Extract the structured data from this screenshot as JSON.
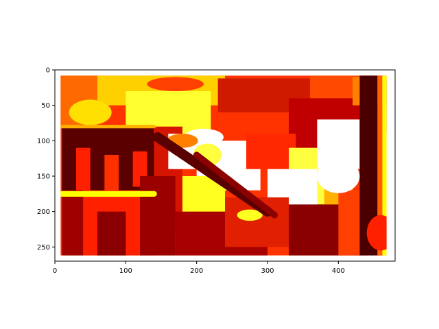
{
  "chart_data": {
    "type": "heatmap",
    "image_width": 480,
    "image_height": 270,
    "xlim": [
      0,
      480
    ],
    "ylim": [
      270,
      0
    ],
    "data_extent": {
      "x": [
        8,
        468
      ],
      "y": [
        8,
        262
      ]
    },
    "x_ticks": [
      0,
      100,
      200,
      300,
      400
    ],
    "y_ticks": [
      0,
      50,
      100,
      150,
      200,
      250
    ],
    "colormap": "hot",
    "colormap_stops": [
      "#000000",
      "#8b0000",
      "#ff0000",
      "#ff8c00",
      "#ffff00",
      "#ffffff"
    ],
    "grid": false,
    "legend": "none",
    "colorbar": false,
    "regions": [
      {
        "x": [
          8,
          468
        ],
        "y": [
          8,
          262
        ],
        "color": "#ff3300"
      },
      {
        "x": [
          8,
          60
        ],
        "y": [
          8,
          80
        ],
        "color": "#ff6a00"
      },
      {
        "x": [
          60,
          240
        ],
        "y": [
          8,
          50
        ],
        "color": "#ffd000"
      },
      {
        "x": [
          100,
          220
        ],
        "y": [
          30,
          90
        ],
        "color": "#ffff30"
      },
      {
        "x": [
          230,
          360
        ],
        "y": [
          12,
          60
        ],
        "color": "#d01a00"
      },
      {
        "x": [
          360,
          470
        ],
        "y": [
          8,
          90
        ],
        "color": "#ff4a00"
      },
      {
        "x": [
          330,
          430
        ],
        "y": [
          40,
          110
        ],
        "color": "#c00000"
      },
      {
        "x": [
          420,
          530
        ],
        "y": [
          10,
          50
        ],
        "color": "#ff8000"
      },
      {
        "x": [
          10,
          140
        ],
        "y": [
          80,
          170
        ],
        "color": "#5a0000"
      },
      {
        "x": [
          30,
          50
        ],
        "y": [
          110,
          170
        ],
        "color": "#ff2000"
      },
      {
        "x": [
          70,
          90
        ],
        "y": [
          120,
          170
        ],
        "color": "#ff3000"
      },
      {
        "x": [
          110,
          130
        ],
        "y": [
          115,
          165
        ],
        "color": "#ff2000"
      },
      {
        "x": [
          140,
          180
        ],
        "y": [
          80,
          220
        ],
        "color": "#d61500"
      },
      {
        "x": [
          160,
          200
        ],
        "y": [
          90,
          140
        ],
        "color": "#ffffff"
      },
      {
        "x": [
          200,
          290
        ],
        "y": [
          100,
          170
        ],
        "color": "#ffffff"
      },
      {
        "x": [
          180,
          240
        ],
        "y": [
          150,
          210
        ],
        "color": "#ffff20"
      },
      {
        "x": [
          270,
          340
        ],
        "y": [
          90,
          140
        ],
        "color": "#ff2800"
      },
      {
        "x": [
          330,
          420
        ],
        "y": [
          110,
          190
        ],
        "color": "#ffff40"
      },
      {
        "x": [
          370,
          430
        ],
        "y": [
          70,
          140
        ],
        "color": "#ffffff"
      },
      {
        "x": [
          300,
          370
        ],
        "y": [
          140,
          200
        ],
        "color": "#ffffff"
      },
      {
        "x": [
          380,
          420
        ],
        "y": [
          150,
          220
        ],
        "color": "#ffb000"
      },
      {
        "x": [
          10,
          40
        ],
        "y": [
          170,
          262
        ],
        "color": "#a00000"
      },
      {
        "x": [
          40,
          140
        ],
        "y": [
          180,
          262
        ],
        "color": "#ff2000"
      },
      {
        "x": [
          60,
          100
        ],
        "y": [
          200,
          262
        ],
        "color": "#8a0000"
      },
      {
        "x": [
          120,
          170
        ],
        "y": [
          150,
          262
        ],
        "color": "#9a0000"
      },
      {
        "x": [
          170,
          300
        ],
        "y": [
          200,
          262
        ],
        "color": "#a80000"
      },
      {
        "x": [
          240,
          330
        ],
        "y": [
          180,
          250
        ],
        "color": "#e02000"
      },
      {
        "x": [
          330,
          430
        ],
        "y": [
          190,
          262
        ],
        "color": "#8a0000"
      },
      {
        "x": [
          400,
          440
        ],
        "y": [
          170,
          262
        ],
        "color": "#ff4000"
      },
      {
        "x": [
          430,
          460
        ],
        "y": [
          8,
          262
        ],
        "color": "#4a0000"
      },
      {
        "x": [
          455,
          462
        ],
        "y": [
          8,
          262
        ],
        "color": "#ff6000"
      },
      {
        "x": [
          462,
          468
        ],
        "y": [
          8,
          262
        ],
        "color": "#ffff00"
      }
    ],
    "blobs": [
      {
        "x": 210,
        "y": 95,
        "rx": 28,
        "ry": 12,
        "color": "#ffffff"
      },
      {
        "x": 215,
        "y": 120,
        "rx": 20,
        "ry": 16,
        "color": "#ffff40"
      },
      {
        "x": 180,
        "y": 100,
        "rx": 22,
        "ry": 10,
        "color": "#ff8000"
      },
      {
        "x": 50,
        "y": 60,
        "rx": 30,
        "ry": 18,
        "color": "#ffe000"
      },
      {
        "x": 170,
        "y": 20,
        "rx": 40,
        "ry": 10,
        "color": "#ff4000"
      },
      {
        "x": 400,
        "y": 150,
        "rx": 30,
        "ry": 24,
        "color": "#ffffff"
      },
      {
        "x": 275,
        "y": 205,
        "rx": 18,
        "ry": 8,
        "color": "#ffff20"
      },
      {
        "x": 460,
        "y": 230,
        "rx": 20,
        "ry": 25,
        "color": "#ff2000"
      }
    ],
    "bands": [
      {
        "x1": 145,
        "y1": 95,
        "x2": 300,
        "y2": 200,
        "w": 14,
        "color": "#5a0000"
      },
      {
        "x1": 200,
        "y1": 120,
        "x2": 310,
        "y2": 205,
        "w": 9,
        "color": "#8b0000"
      },
      {
        "x1": 10,
        "y1": 175,
        "x2": 140,
        "y2": 175,
        "w": 8,
        "color": "#ffff00"
      },
      {
        "x1": 10,
        "y1": 80,
        "x2": 140,
        "y2": 80,
        "w": 5,
        "color": "#ffb000"
      }
    ]
  }
}
